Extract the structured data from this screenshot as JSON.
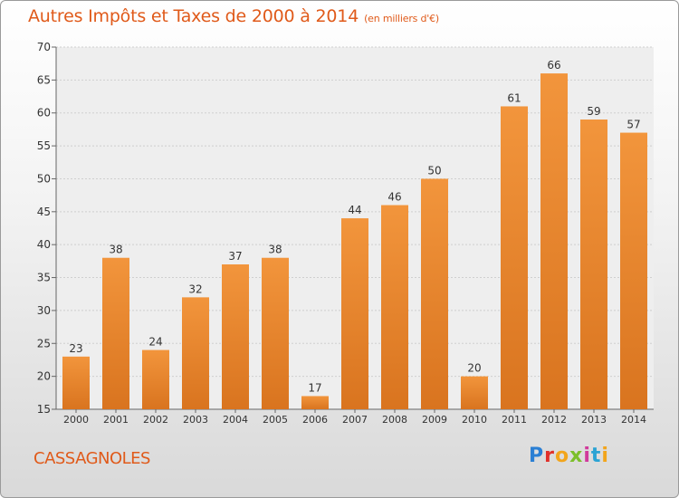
{
  "title": "Autres Impôts et Taxes de 2000 à 2014",
  "subtitle": "(en milliers d'€)",
  "commune": "CASSAGNOLES",
  "logo": {
    "text": "Proxiti",
    "colors": [
      "#2a7fd4",
      "#e0302a",
      "#f2a51c",
      "#7cbf2a",
      "#d13a9c",
      "#2aa3d4",
      "#f2a51c"
    ]
  },
  "colors": {
    "bar": "#f2953c",
    "bar_dark": "#d9741f",
    "accent": "#e05a1a"
  },
  "chart_data": {
    "type": "bar",
    "categories": [
      "2000",
      "2001",
      "2002",
      "2003",
      "2004",
      "2005",
      "2006",
      "2007",
      "2008",
      "2009",
      "2010",
      "2011",
      "2012",
      "2013",
      "2014"
    ],
    "values": [
      23,
      38,
      24,
      32,
      37,
      38,
      17,
      44,
      46,
      50,
      20,
      61,
      66,
      59,
      57
    ],
    "ylim": [
      15,
      70
    ],
    "yticks": [
      15,
      20,
      25,
      30,
      35,
      40,
      45,
      50,
      55,
      60,
      65,
      70
    ],
    "grid": true
  }
}
